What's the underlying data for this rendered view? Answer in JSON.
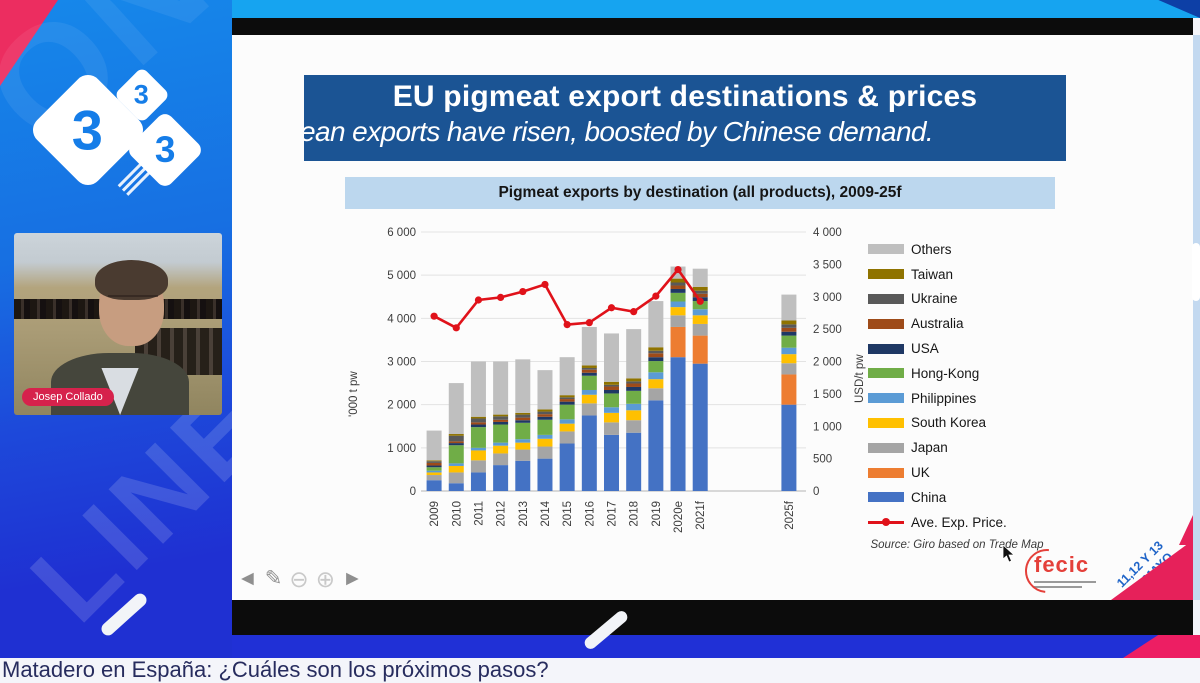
{
  "window": {
    "bottom_caption": "Matadero en España: ¿Cuáles son los próximos pasos?"
  },
  "presenter": {
    "name": "Josep Collado"
  },
  "logo333": {
    "digits": [
      "3",
      "3",
      "3"
    ]
  },
  "decor": {
    "watermark_top": "ON",
    "watermark_bottom": "LINE"
  },
  "event": {
    "dates_line1": "11,12 Y 13",
    "dates_line2": "DE MAYO",
    "org": "fecic"
  },
  "slide": {
    "title": "EU pigmeat export destinations & prices",
    "subtitle_visible": "ean exports have risen, boosted by Chinese demand.",
    "chart_header": "Pigmeat exports by destination (all products), 2009-25f",
    "source_note": "Source: Giro based on Trade Map",
    "colors": {
      "banner_bg": "#1b5494",
      "chart_header_bg": "#bcd7ee",
      "accent_pink": "#e6215a"
    }
  },
  "toolbar": {
    "icons": [
      {
        "name": "prev-arrow",
        "glyph": "◄",
        "light": false
      },
      {
        "name": "pencil",
        "glyph": "✎",
        "light": false
      },
      {
        "name": "zoom-out",
        "glyph": "⊖",
        "light": true
      },
      {
        "name": "zoom-in",
        "glyph": "⊕",
        "light": true
      },
      {
        "name": "next-arrow",
        "glyph": "►",
        "light": false
      }
    ]
  },
  "chart_data": {
    "type": "bar",
    "stacked": true,
    "title": "Pigmeat exports by destination (all products), 2009-25f",
    "categories": [
      "2009",
      "2010",
      "2011",
      "2012",
      "2013",
      "2014",
      "2015",
      "2016",
      "2017",
      "2018",
      "2019",
      "2020e",
      "2021f",
      "2025f"
    ],
    "slot_index": [
      0,
      1,
      2,
      3,
      4,
      5,
      6,
      7,
      8,
      9,
      10,
      11,
      12,
      16
    ],
    "total_slots": 17,
    "ylabel_left": "'000 t pw",
    "ylabel_right": "USD/t pw",
    "ylim_left": [
      0,
      6000
    ],
    "ylim_right": [
      0,
      4000
    ],
    "yticks_left": [
      "0",
      "1 000",
      "2 000",
      "3 000",
      "4 000",
      "5 000",
      "6 000"
    ],
    "yticks_right": [
      "0",
      "500",
      "1 000",
      "1 500",
      "2 000",
      "2 500",
      "3 000",
      "3 500",
      "4 000"
    ],
    "grid": true,
    "legend_position": "right",
    "series": [
      {
        "name": "China",
        "color": "#4472c4",
        "values": [
          250,
          180,
          430,
          600,
          700,
          750,
          1100,
          1750,
          1300,
          1350,
          2100,
          3100,
          2950,
          2000
        ]
      },
      {
        "name": "UK",
        "color": "#ed7d31",
        "values": [
          0,
          0,
          0,
          0,
          0,
          0,
          0,
          0,
          0,
          0,
          0,
          700,
          650,
          700
        ]
      },
      {
        "name": "Japan",
        "color": "#a5a5a5",
        "values": [
          120,
          250,
          280,
          270,
          260,
          280,
          280,
          280,
          290,
          290,
          280,
          270,
          270,
          260
        ]
      },
      {
        "name": "South Korea",
        "color": "#ffc000",
        "values": [
          60,
          150,
          230,
          180,
          160,
          180,
          180,
          200,
          220,
          230,
          210,
          190,
          200,
          210
        ]
      },
      {
        "name": "Philippines",
        "color": "#5b9bd5",
        "values": [
          40,
          60,
          60,
          70,
          80,
          90,
          100,
          110,
          130,
          150,
          160,
          130,
          140,
          150
        ]
      },
      {
        "name": "Hong-Kong",
        "color": "#70ad47",
        "values": [
          80,
          420,
          480,
          420,
          380,
          350,
          340,
          330,
          320,
          300,
          260,
          200,
          190,
          280
        ]
      },
      {
        "name": "USA",
        "color": "#1f3864",
        "values": [
          40,
          50,
          60,
          60,
          60,
          70,
          70,
          70,
          80,
          90,
          90,
          90,
          90,
          90
        ]
      },
      {
        "name": "Australia",
        "color": "#9e4b19",
        "values": [
          60,
          40,
          50,
          50,
          60,
          60,
          60,
          70,
          80,
          80,
          90,
          80,
          80,
          90
        ]
      },
      {
        "name": "Ukraine",
        "color": "#595959",
        "values": [
          40,
          130,
          90,
          80,
          70,
          60,
          40,
          40,
          40,
          50,
          60,
          70,
          70,
          80
        ]
      },
      {
        "name": "Taiwan",
        "color": "#8f7300",
        "values": [
          20,
          40,
          40,
          40,
          40,
          50,
          50,
          60,
          70,
          70,
          80,
          90,
          90,
          90
        ]
      },
      {
        "name": "Others",
        "color": "#bfbfbf",
        "values": [
          690,
          1180,
          1280,
          1230,
          1240,
          910,
          880,
          890,
          1120,
          1140,
          1070,
          280,
          420,
          600
        ]
      }
    ],
    "line_series": {
      "name": "Ave. Exp. Price.",
      "color": "#e0121a",
      "axis": "right",
      "values": [
        2700,
        2520,
        2950,
        2990,
        3080,
        3190,
        2570,
        2600,
        2830,
        2770,
        3010,
        3420,
        2930,
        null
      ]
    },
    "legend_order_top_to_bottom": [
      "Others",
      "Taiwan",
      "Ukraine",
      "Australia",
      "USA",
      "Hong-Kong",
      "Philippines",
      "South Korea",
      "Japan",
      "UK",
      "China",
      "Ave. Exp. Price."
    ]
  }
}
